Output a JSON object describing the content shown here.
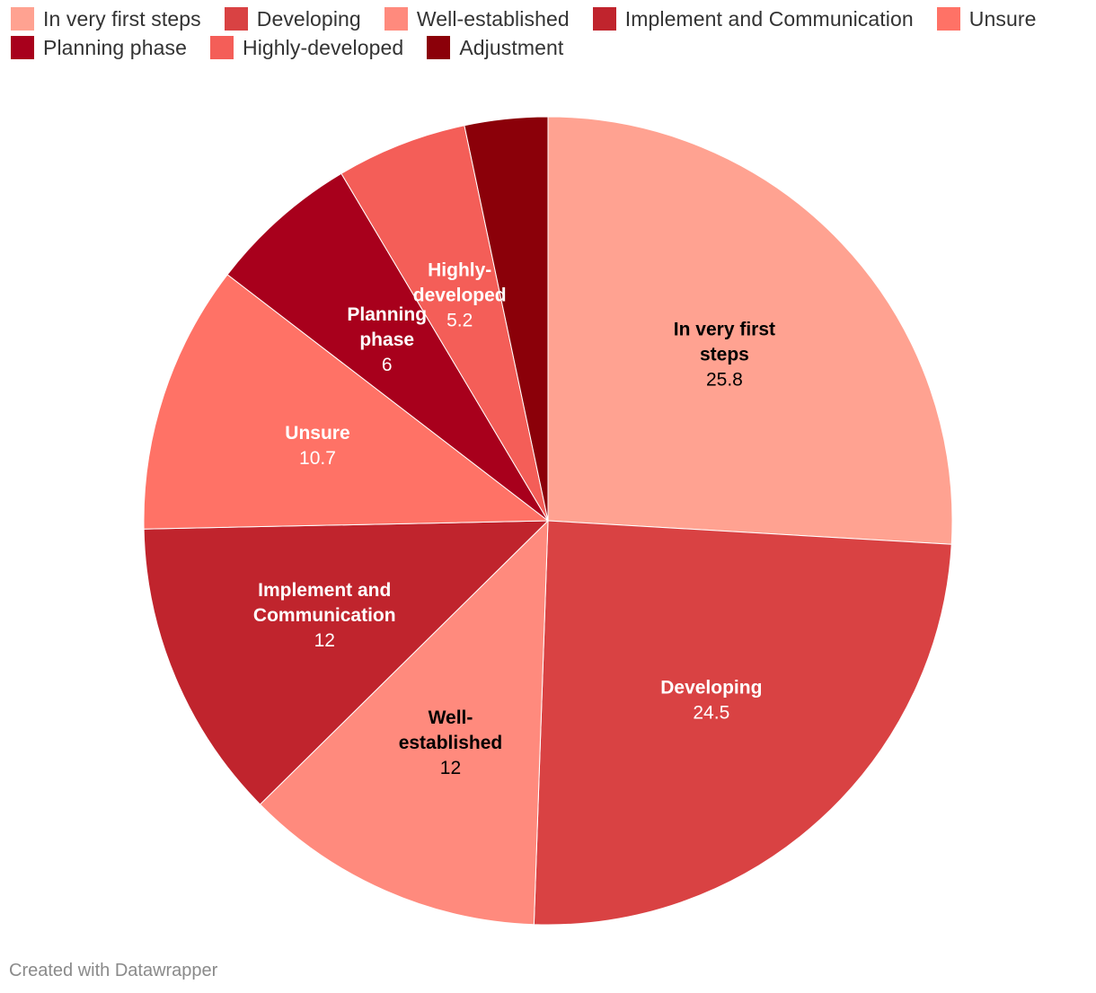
{
  "chart_data": {
    "type": "pie",
    "title": "",
    "slices": [
      {
        "label": "In very first steps",
        "chart_label": [
          "In very first",
          "steps"
        ],
        "value": 25.8,
        "value_label": "25.8",
        "color": "#ffa291",
        "label_color": "#000000"
      },
      {
        "label": "Developing",
        "chart_label": [
          "Developing"
        ],
        "value": 24.5,
        "value_label": "24.5",
        "color": "#d94243",
        "label_color": "#ffffff"
      },
      {
        "label": "Well-established",
        "chart_label": [
          "Well-",
          "established"
        ],
        "value": 12,
        "value_label": "12",
        "color": "#ff8a7d",
        "label_color": "#000000"
      },
      {
        "label": "Implement and Communication",
        "chart_label": [
          "Implement and",
          "Communication"
        ],
        "value": 12,
        "value_label": "12",
        "color": "#c0242d",
        "label_color": "#ffffff"
      },
      {
        "label": "Unsure",
        "chart_label": [
          "Unsure"
        ],
        "value": 10.7,
        "value_label": "10.7",
        "color": "#ff7266",
        "label_color": "#ffffff"
      },
      {
        "label": "Planning phase",
        "chart_label": [
          "Planning",
          "phase"
        ],
        "value": 6,
        "value_label": "6",
        "color": "#a8001c",
        "label_color": "#ffffff"
      },
      {
        "label": "Highly-developed",
        "chart_label": [
          "Highly-",
          "developed"
        ],
        "value": 5.2,
        "value_label": "5.2",
        "color": "#f45e58",
        "label_color": "#ffffff"
      },
      {
        "label": "Adjustment",
        "chart_label": [],
        "value": 3.3,
        "value_label": "",
        "color": "#8b0009",
        "label_color": "#ffffff"
      }
    ],
    "legend_position": "top-left"
  },
  "footer": {
    "credit": "Created with Datawrapper"
  }
}
